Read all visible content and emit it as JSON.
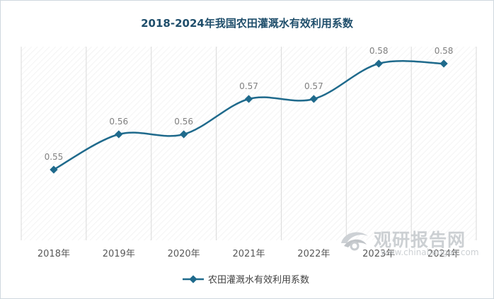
{
  "chart_data": {
    "type": "line",
    "title": "2018-2024年我国农田灌溉水有效利用系数",
    "categories": [
      "2018年",
      "2019年",
      "2020年",
      "2021年",
      "2022年",
      "2023年",
      "2024年"
    ],
    "series": [
      {
        "name": "农田灌溉水有效利用系数",
        "values": [
          0.55,
          0.56,
          0.56,
          0.57,
          0.57,
          0.58,
          0.58
        ],
        "labels": [
          "0.55",
          "0.56",
          "0.56",
          "0.57",
          "0.57",
          "0.58",
          "0.58"
        ]
      }
    ],
    "xlabel": "",
    "ylabel": "",
    "ylim": [
      0.53,
      0.58
    ],
    "grid": "vertical",
    "legend": "bottom-center",
    "smooth": true
  },
  "watermark": {
    "text": "观研报告网",
    "url": "www.chinabaogao.com"
  },
  "colors": {
    "series": "#1f6a8c",
    "title": "#1f4e6b",
    "label": "#7f7f7f",
    "tick": "#595959",
    "grid": "#d9d9d9"
  }
}
